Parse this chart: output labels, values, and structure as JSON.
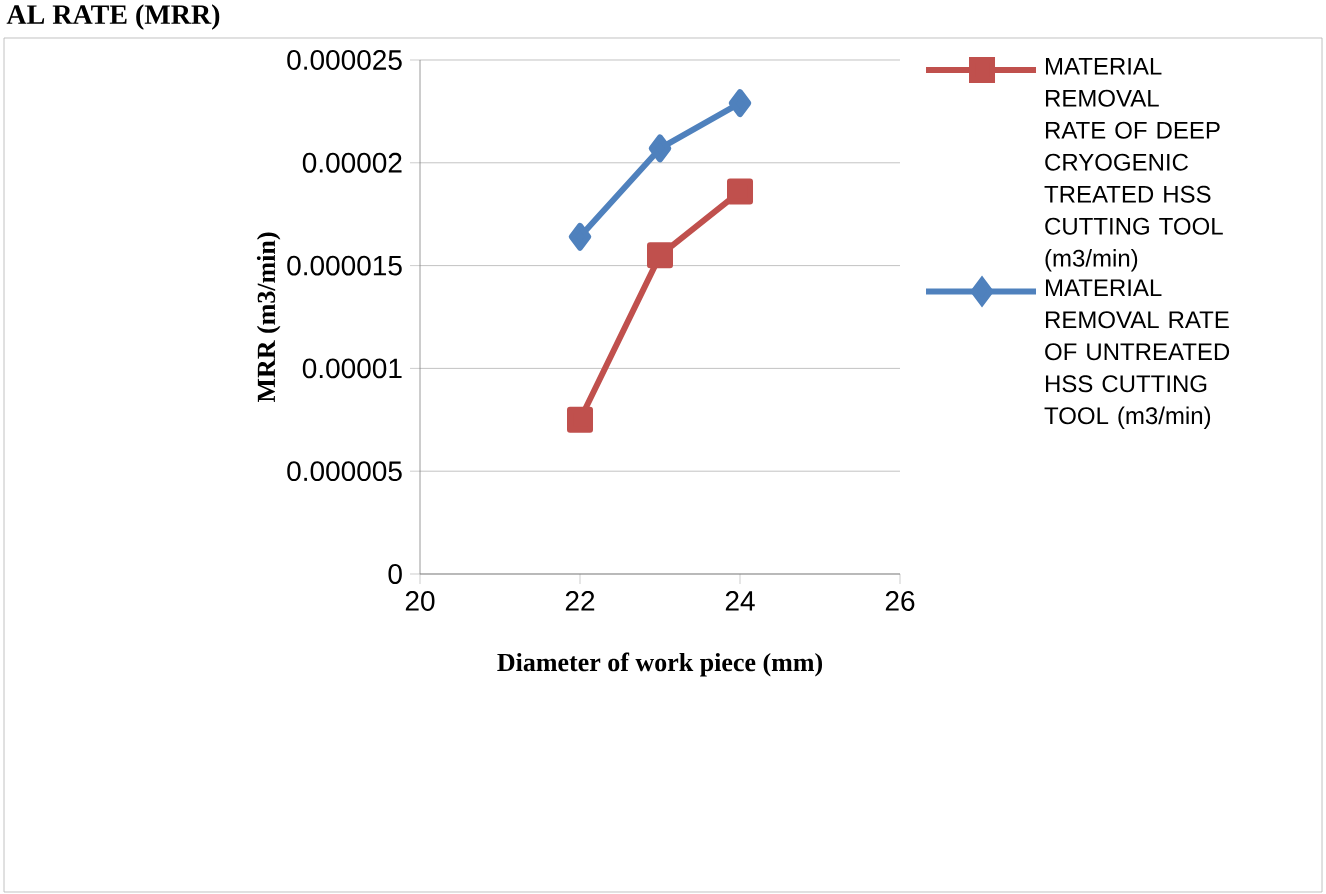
{
  "chart_data": {
    "type": "line",
    "title": "AL RATE (MRR)",
    "xlabel": "Diameter of work piece (mm)",
    "ylabel": "MRR (m3/min)",
    "x": [
      22,
      23,
      24
    ],
    "series": [
      {
        "name": "MATERIAL REMOVAL RATE OF DEEP CRYOGENIC TREATED HSS CUTTING TOOL (m3/min)",
        "color": "#c0504d",
        "marker": "square",
        "values": [
          7.5e-06,
          1.55e-05,
          1.86e-05
        ]
      },
      {
        "name": "MATERIAL REMOVAL RATE OF UNTREATED HSS CUTTING TOOL (m3/min)",
        "color": "#4f81bd",
        "marker": "diamond",
        "values": [
          1.64e-05,
          2.07e-05,
          2.29e-05
        ]
      }
    ],
    "xlim": [
      20,
      26
    ],
    "xticks": [
      20,
      22,
      24,
      26
    ],
    "ylim": [
      0,
      2.5e-05
    ],
    "yticks": [
      {
        "value": 0,
        "label": "0"
      },
      {
        "value": 5e-06,
        "label": "0.000005"
      },
      {
        "value": 1e-05,
        "label": "0.00001"
      },
      {
        "value": 1.5e-05,
        "label": "0.000015"
      },
      {
        "value": 2e-05,
        "label": "0.00002"
      },
      {
        "value": 2.5e-05,
        "label": "0.000025"
      }
    ],
    "grid": "y",
    "legend": "right",
    "line_style": "solid"
  }
}
